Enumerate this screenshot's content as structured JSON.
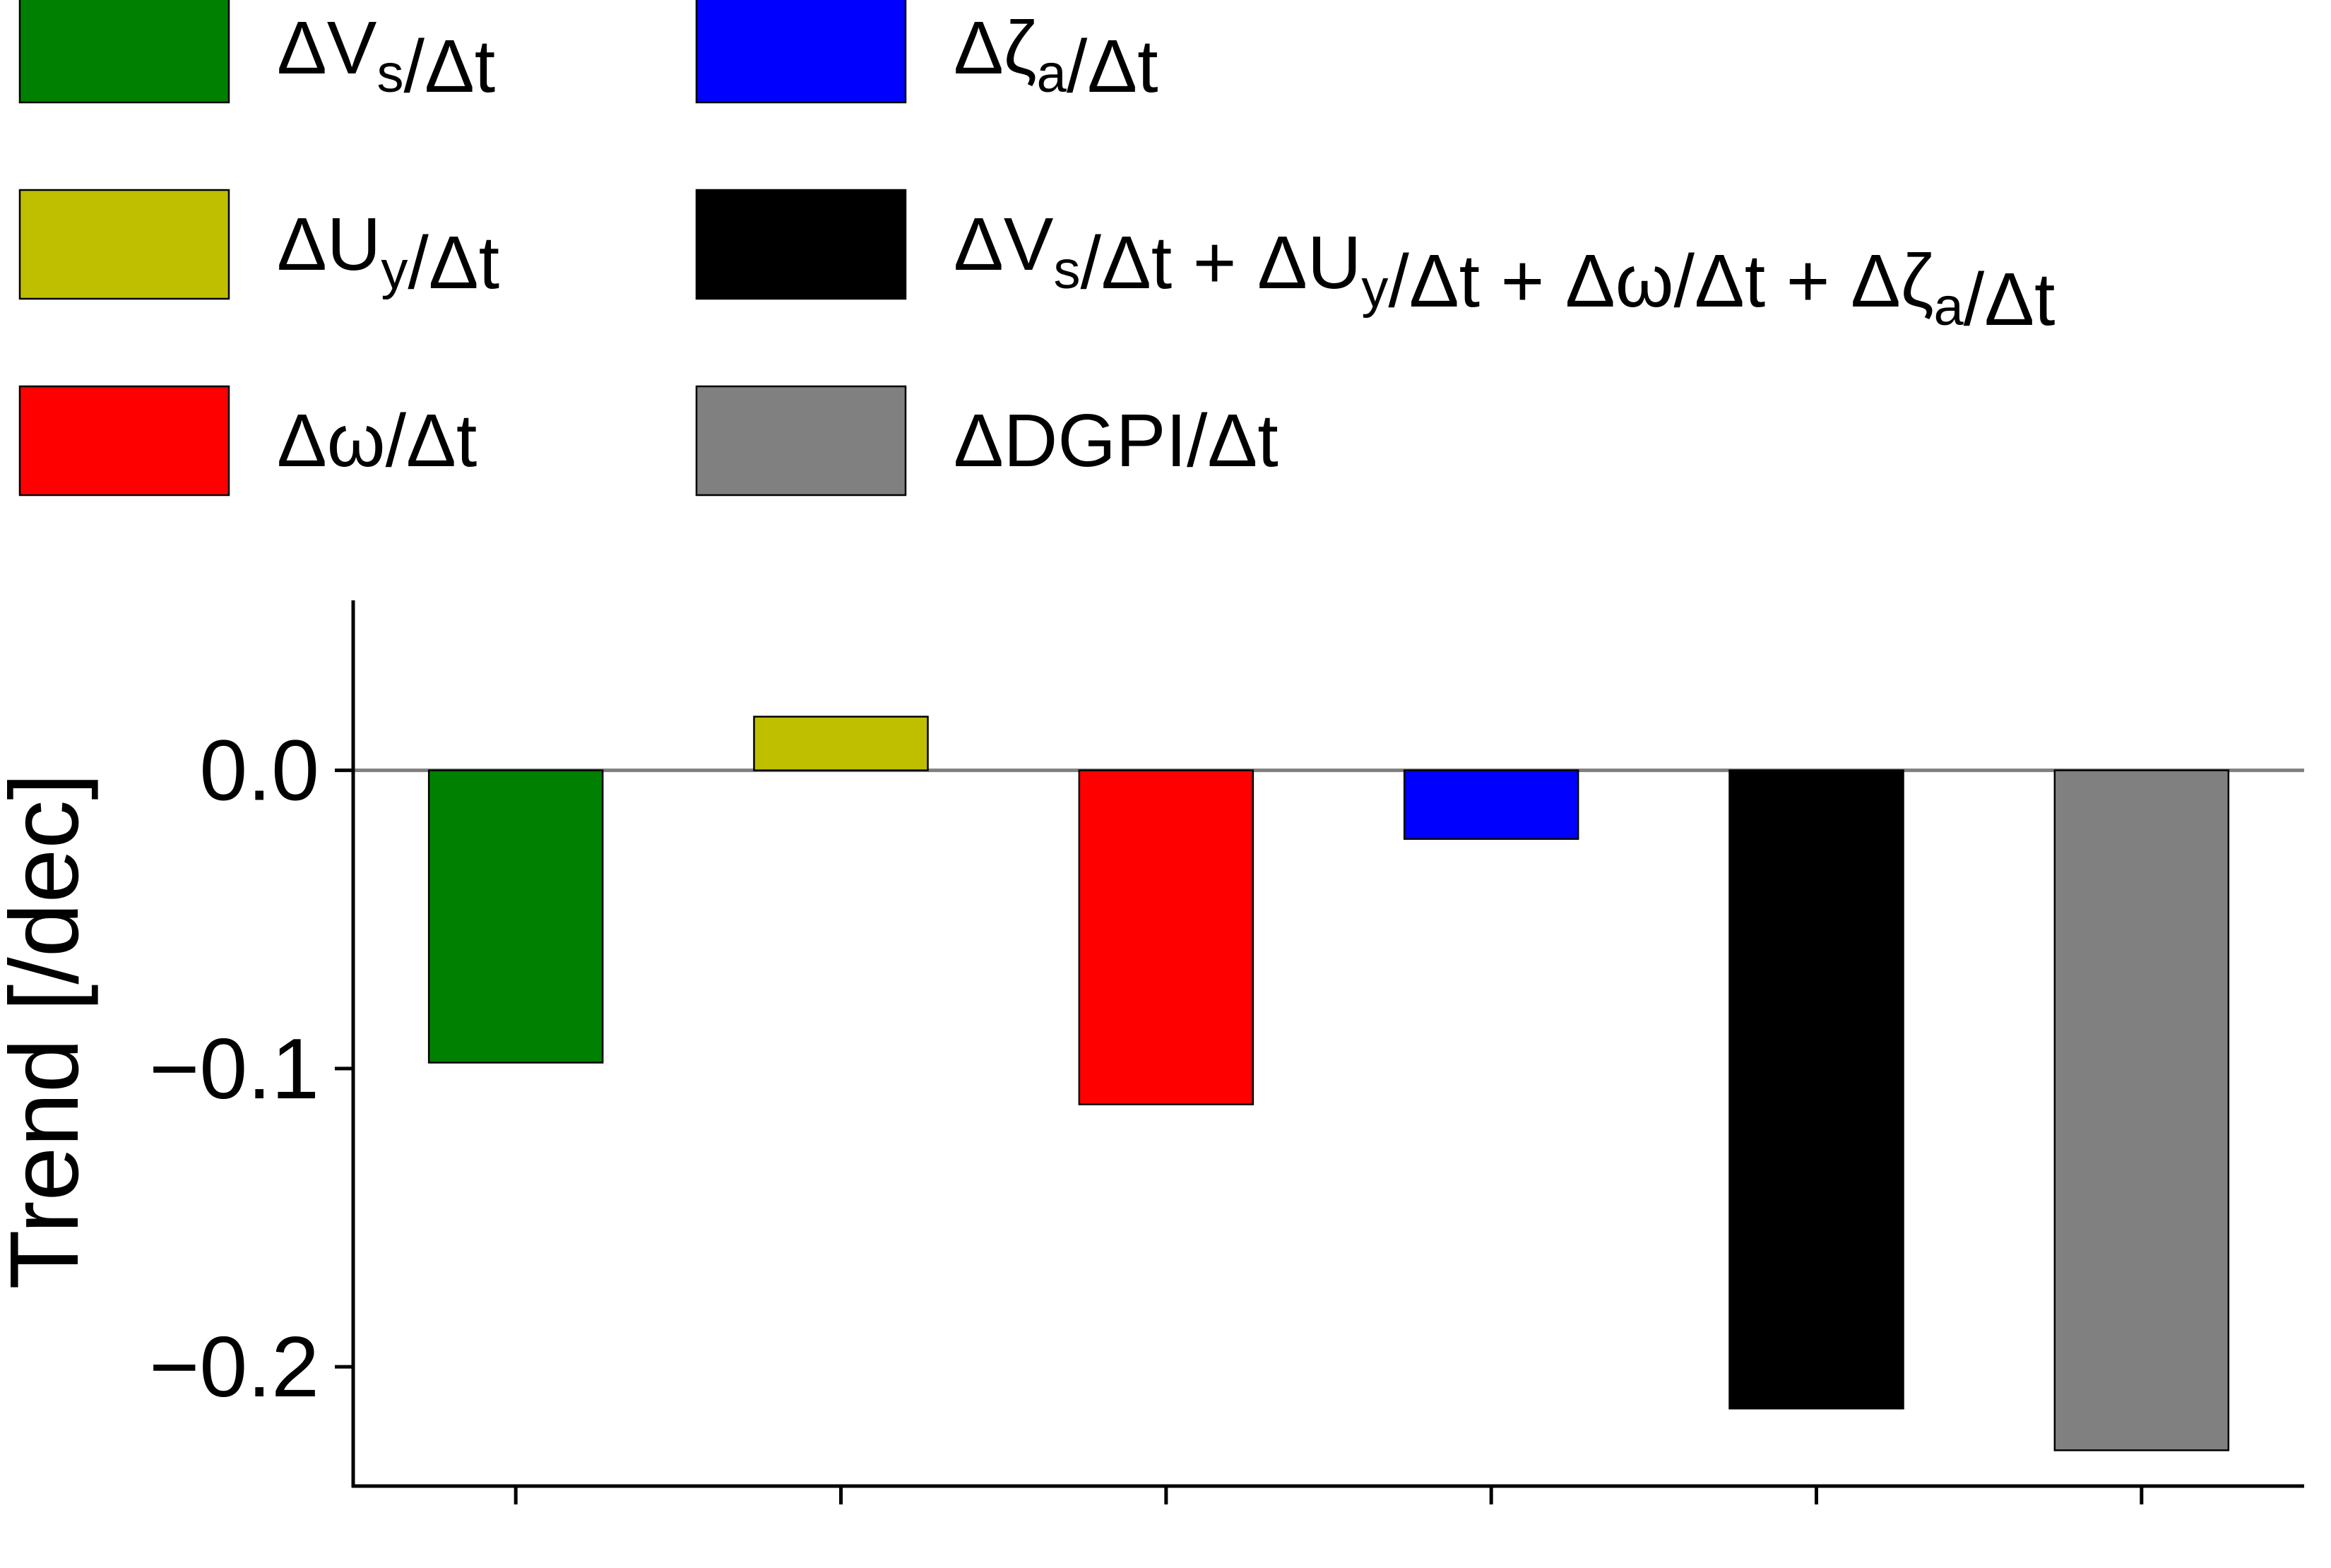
{
  "chart_data": {
    "type": "bar",
    "title": "",
    "xlabel": "",
    "ylabel": "Trend [/dec]",
    "ylim": [
      -0.24,
      0.057
    ],
    "yticks": [
      0.0,
      -0.1,
      -0.2
    ],
    "ytick_labels": [
      "0.0",
      "−0.1",
      "−0.2"
    ],
    "x_tick_count": 6,
    "x_tick_labels_shown": false,
    "grid": false,
    "zero_line": true,
    "legend_position": "top",
    "series": [
      {
        "name": "ΔVs/Δt",
        "label_parts": [
          [
            "ΔV",
            ""
          ],
          [
            "s",
            "sub"
          ],
          [
            "/Δt",
            ""
          ]
        ],
        "value": -0.098,
        "color": "#008000"
      },
      {
        "name": "ΔUy/Δt",
        "label_parts": [
          [
            "ΔU",
            ""
          ],
          [
            "y",
            "sub"
          ],
          [
            "/Δt",
            ""
          ]
        ],
        "value": 0.018,
        "color": "#bfbf00"
      },
      {
        "name": "Δω/Δt",
        "label_parts": [
          [
            "Δω/Δt",
            ""
          ]
        ],
        "value": -0.112,
        "color": "#ff0000"
      },
      {
        "name": "Δζa/Δt",
        "label_parts": [
          [
            "Δζ",
            ""
          ],
          [
            "a",
            "sub"
          ],
          [
            "/Δt",
            ""
          ]
        ],
        "value": -0.023,
        "color": "#0000ff"
      },
      {
        "name": "ΔVs/Δt + ΔUy/Δt + Δω/Δt + Δζa/Δt",
        "label_parts": [
          [
            "ΔV",
            ""
          ],
          [
            "s",
            "sub"
          ],
          [
            "/Δt + ΔU",
            ""
          ],
          [
            "y",
            "sub"
          ],
          [
            "/Δt + Δω/Δt + Δζ",
            ""
          ],
          [
            "a",
            "sub"
          ],
          [
            "/Δt",
            ""
          ]
        ],
        "value": -0.214,
        "color": "#000000"
      },
      {
        "name": "ΔDGPI/Δt",
        "label_parts": [
          [
            "ΔDGPI/Δt",
            ""
          ]
        ],
        "value": -0.228,
        "color": "#808080"
      }
    ]
  }
}
